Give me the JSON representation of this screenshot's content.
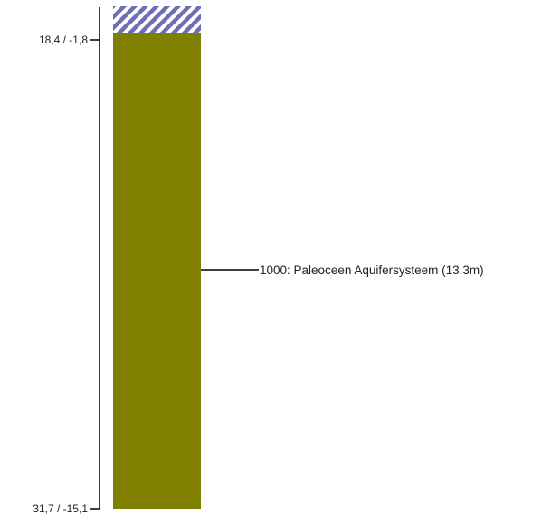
{
  "diagram": {
    "type": "borehole-column",
    "axis": {
      "top_tick": {
        "label": "18,4 / -1,8"
      },
      "bottom_tick": {
        "label": "31,7 / -15,1"
      }
    },
    "layers": [
      {
        "name": "overlying-layer",
        "pattern": "diagonal-hatch",
        "color": "#6e6eb4",
        "background": "#ffffff",
        "label": ""
      },
      {
        "name": "paleoceen-aquifersysteem",
        "pattern": "solid",
        "color": "#808000",
        "label": "1000: Paleoceen Aquifersysteem (13,3m)",
        "thickness_m": 13.3
      }
    ]
  }
}
